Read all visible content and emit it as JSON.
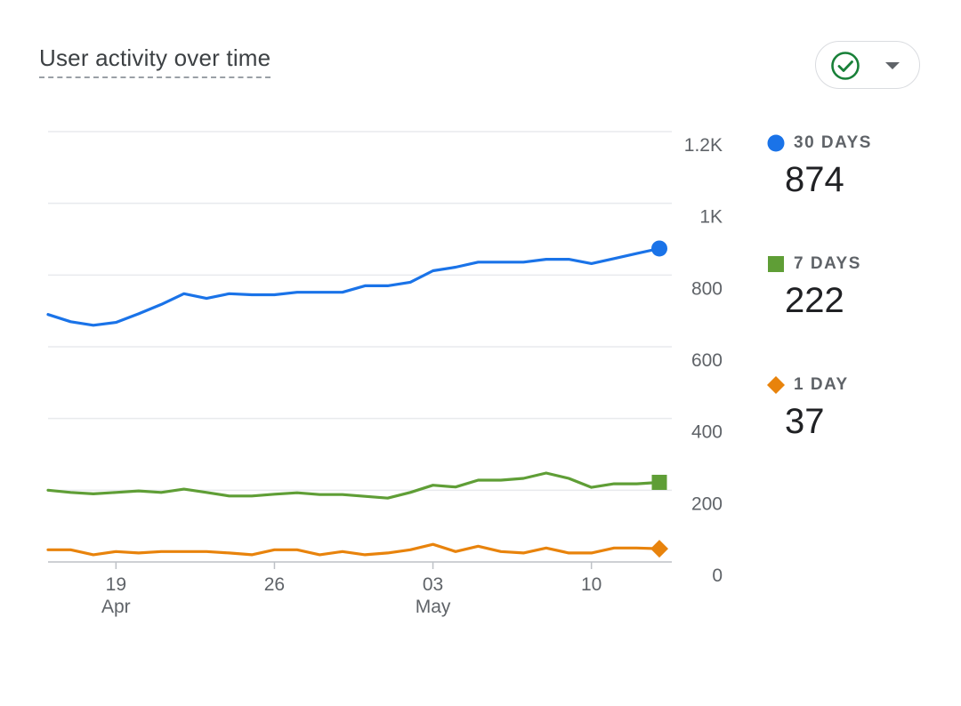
{
  "card": {
    "title": "User activity over time"
  },
  "compare_button": {
    "icon": "check-circle-icon",
    "caret_icon": "caret-down-icon",
    "icon_color": "#188038"
  },
  "legend": [
    {
      "label": "30 DAYS",
      "value": "874",
      "marker": "circle",
      "color": "#1a73e8"
    },
    {
      "label": "7 DAYS",
      "value": "222",
      "marker": "square",
      "color": "#5f9e36"
    },
    {
      "label": "1 DAY",
      "value": "37",
      "marker": "diamond",
      "color": "#e8830c"
    }
  ],
  "chart_data": {
    "type": "line",
    "title": "User activity over time",
    "xlabel": "",
    "ylabel": "",
    "ylim": [
      0,
      1200
    ],
    "y_ticks": [
      0,
      200,
      400,
      600,
      800,
      1000,
      1200
    ],
    "y_tick_labels": [
      "0",
      "200",
      "400",
      "600",
      "800",
      "1K",
      "1.2K"
    ],
    "y_axis_position": "right",
    "grid": true,
    "x_tick_labels": [
      {
        "index": 3,
        "label": "19",
        "sublabel": "Apr"
      },
      {
        "index": 10,
        "label": "26",
        "sublabel": ""
      },
      {
        "index": 17,
        "label": "03",
        "sublabel": "May"
      },
      {
        "index": 24,
        "label": "10",
        "sublabel": ""
      }
    ],
    "x": [
      "Apr 16",
      "Apr 17",
      "Apr 18",
      "Apr 19",
      "Apr 20",
      "Apr 21",
      "Apr 22",
      "Apr 23",
      "Apr 24",
      "Apr 25",
      "Apr 26",
      "Apr 27",
      "Apr 28",
      "Apr 29",
      "Apr 30",
      "May 01",
      "May 02",
      "May 03",
      "May 04",
      "May 05",
      "May 06",
      "May 07",
      "May 08",
      "May 09",
      "May 10",
      "May 11",
      "May 12",
      "May 13"
    ],
    "series": [
      {
        "name": "30 DAYS",
        "color": "#1a73e8",
        "marker": "circle",
        "values": [
          690,
          670,
          660,
          668,
          692,
          718,
          748,
          735,
          748,
          745,
          745,
          752,
          752,
          752,
          770,
          770,
          780,
          812,
          822,
          836,
          836,
          836,
          844,
          844,
          832,
          846,
          860,
          874
        ]
      },
      {
        "name": "7 DAYS",
        "color": "#5f9e36",
        "marker": "square",
        "values": [
          200,
          194,
          190,
          194,
          198,
          194,
          203,
          194,
          184,
          184,
          189,
          193,
          188,
          188,
          183,
          178,
          194,
          214,
          209,
          228,
          228,
          233,
          248,
          233,
          208,
          218,
          218,
          222
        ]
      },
      {
        "name": "1 DAY",
        "color": "#e8830c",
        "marker": "diamond",
        "values": [
          34,
          34,
          20,
          29,
          25,
          29,
          29,
          29,
          25,
          20,
          34,
          34,
          20,
          29,
          20,
          25,
          34,
          49,
          29,
          44,
          29,
          25,
          39,
          25,
          25,
          39,
          39,
          37
        ]
      }
    ]
  }
}
